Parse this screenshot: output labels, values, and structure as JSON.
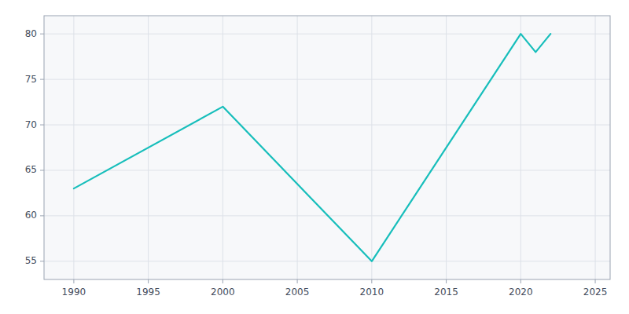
{
  "chart_data": {
    "type": "line",
    "x": [
      1990,
      2000,
      2010,
      2020,
      2021,
      2022
    ],
    "values": [
      63,
      72,
      55,
      80,
      78,
      80
    ],
    "color": "#17BEBB",
    "xlim": [
      1988,
      2026
    ],
    "ylim": [
      53,
      82
    ],
    "xticks": [
      1990,
      1995,
      2000,
      2005,
      2010,
      2015,
      2020,
      2025
    ],
    "yticks": [
      55,
      60,
      65,
      70,
      75,
      80
    ],
    "grid": true
  }
}
